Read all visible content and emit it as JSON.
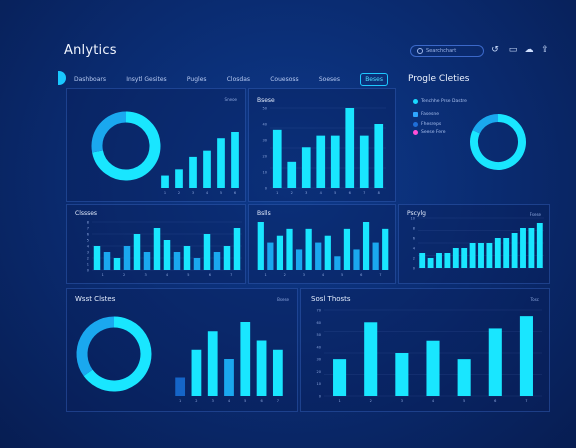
{
  "app": {
    "title": "Anlytics"
  },
  "search": {
    "placeholder": "Searchchart"
  },
  "tabs": [
    {
      "label": "Dashboars",
      "active": false
    },
    {
      "label": "Insytl Gesites",
      "active": false
    },
    {
      "label": "Pugles",
      "active": false
    },
    {
      "label": "Closdas",
      "active": false
    },
    {
      "label": "Couesoss",
      "active": false
    },
    {
      "label": "Soeses",
      "active": false
    },
    {
      "label": "Beses",
      "active": true
    }
  ],
  "side": {
    "title": "Progle Cleties",
    "legend": [
      {
        "label": "Tenchhe Prse Dastre",
        "color": "#19d8ff"
      },
      {
        "label": "Fasesne",
        "color": "#2fa7ff"
      },
      {
        "label": "Fhesreps",
        "color": "#1f6fd8"
      },
      {
        "label": "Seese Fere",
        "color": "#ff4fd8"
      }
    ]
  },
  "panels": {
    "p1": {
      "button": "Sneoe"
    },
    "p2": {
      "title": "Bsese"
    },
    "p3": {
      "title": "Clssses"
    },
    "p4": {
      "title": "Bslls"
    },
    "p5": {
      "title": "Pscylg",
      "button": "Fsese"
    },
    "p6": {
      "title": "Wsst Clstes",
      "button": "Bsese"
    },
    "p7": {
      "title": "Sosl Thosts",
      "button": "Tosc"
    }
  },
  "colors": {
    "bright": "#19e6ff",
    "mid": "#1aa8ef",
    "dark": "#1565c8"
  },
  "chart_data": [
    {
      "id": "donut1",
      "type": "pie",
      "values": [
        72,
        28
      ]
    },
    {
      "id": "bars1",
      "type": "bar",
      "values": [
        2,
        3,
        5,
        6,
        8,
        9
      ],
      "x_ticks": [
        "1",
        "2",
        "3",
        "4",
        "5",
        "6"
      ]
    },
    {
      "id": "bars2",
      "type": "bar",
      "values": [
        40,
        18,
        28,
        36,
        36,
        55,
        36,
        44
      ],
      "y_ticks": [
        "50",
        "40",
        "30",
        "20",
        "10",
        "0"
      ],
      "x_ticks": [
        "1",
        "2",
        "3",
        "4",
        "5",
        "6",
        "7",
        "8"
      ]
    },
    {
      "id": "donut2",
      "type": "pie",
      "values": [
        82,
        18
      ]
    },
    {
      "id": "bars3",
      "type": "bar",
      "values": [
        4,
        3,
        2,
        4,
        6,
        3,
        7,
        5,
        3,
        4,
        2,
        6,
        3,
        4,
        7
      ],
      "shades": [
        "b",
        "m",
        "b",
        "m",
        "b",
        "m",
        "b",
        "b",
        "m",
        "b",
        "m",
        "b",
        "m",
        "b",
        "b"
      ],
      "y_ticks": [
        "8",
        "7",
        "6",
        "5",
        "4",
        "3",
        "2",
        "1",
        "0"
      ],
      "x_ticks": [
        "1",
        "2",
        "3",
        "4",
        "5",
        "6",
        "7"
      ]
    },
    {
      "id": "bars4",
      "type": "bar",
      "values": [
        7,
        4,
        5,
        6,
        3,
        6,
        4,
        5,
        2,
        6,
        3,
        7,
        4,
        6
      ],
      "shades": [
        "b",
        "m",
        "b",
        "b",
        "m",
        "b",
        "m",
        "b",
        "m",
        "b",
        "m",
        "b",
        "m",
        "b"
      ],
      "x_ticks": [
        "1",
        "2",
        "3",
        "4",
        "5",
        "6",
        "7"
      ]
    },
    {
      "id": "bars5",
      "type": "bar",
      "values": [
        3,
        2,
        3,
        3,
        4,
        4,
        5,
        5,
        5,
        6,
        6,
        7,
        8,
        8,
        9
      ],
      "y_ticks": [
        "10",
        "8",
        "6",
        "4",
        "2",
        "0"
      ]
    },
    {
      "id": "donut3",
      "type": "pie",
      "values": [
        65,
        35
      ]
    },
    {
      "id": "bars6",
      "type": "bar",
      "values": [
        2,
        5,
        7,
        4,
        8,
        6,
        5
      ],
      "shades": [
        "d",
        "b",
        "b",
        "m",
        "b",
        "b",
        "b"
      ],
      "x_ticks": [
        "1",
        "2",
        "3",
        "4",
        "5",
        "6",
        "7"
      ]
    },
    {
      "id": "bars7",
      "type": "bar",
      "values": [
        3,
        6,
        3.5,
        4.5,
        3,
        5.5,
        6.5
      ],
      "y_ticks": [
        "70",
        "60",
        "50",
        "40",
        "30",
        "20",
        "10",
        "0"
      ],
      "x_ticks": [
        "1",
        "2",
        "3",
        "4",
        "5",
        "6",
        "7"
      ]
    }
  ]
}
